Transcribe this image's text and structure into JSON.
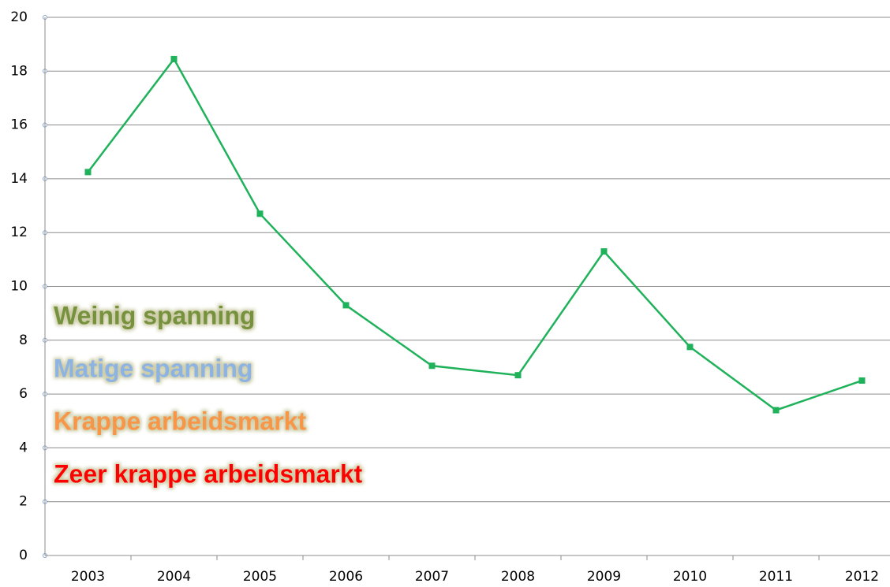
{
  "chart_data": {
    "type": "line",
    "categories": [
      "2003",
      "2004",
      "2005",
      "2006",
      "2007",
      "2008",
      "2009",
      "2010",
      "2011",
      "2012"
    ],
    "series": [
      {
        "color": "#1fb25a",
        "values": [
          14.25,
          18.45,
          12.7,
          9.3,
          7.05,
          6.7,
          11.3,
          7.75,
          5.4,
          6.5
        ]
      }
    ],
    "ylim": [
      0,
      20
    ],
    "yticks": [
      0,
      2,
      4,
      6,
      8,
      10,
      12,
      14,
      16,
      18,
      20
    ],
    "grid": true,
    "annotations": [
      {
        "text": "Weinig spanning",
        "color": "#76923c"
      },
      {
        "text": "Matige spanning",
        "color": "#8db3e2"
      },
      {
        "text": "Krappe arbeidsmarkt",
        "color": "#f79646"
      },
      {
        "text": "Zeer krappe arbeidsmarkt",
        "color": "#ff0000"
      }
    ]
  }
}
